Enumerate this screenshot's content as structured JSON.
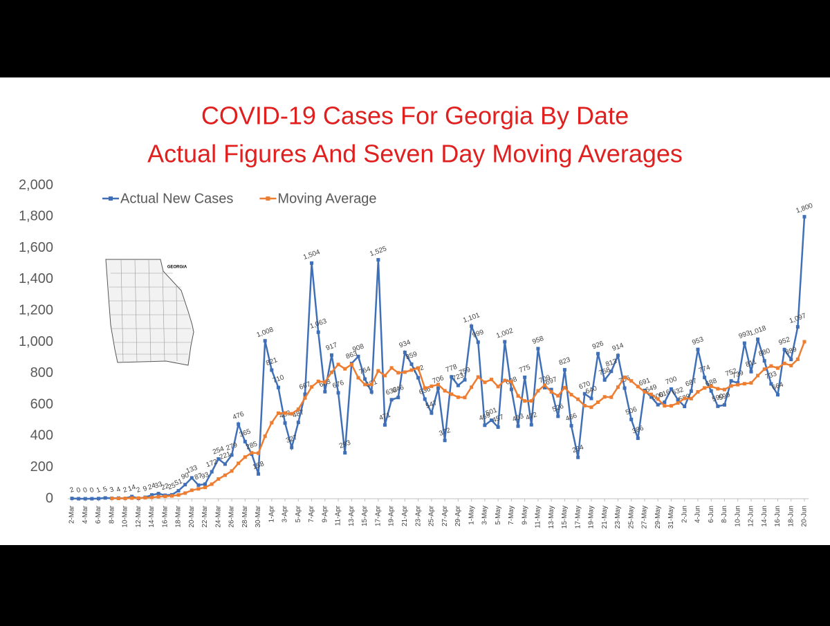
{
  "chart_data": {
    "type": "line",
    "title": [
      "COVID-19 Cases For Georgia By Date",
      "Actual Figures And Seven Day Moving Averages"
    ],
    "map_label": "GEORGIA",
    "categories": [
      "2-Mar",
      null,
      "4-Mar",
      null,
      "6-Mar",
      null,
      "8-Mar",
      null,
      "10-Mar",
      null,
      "12-Mar",
      null,
      "14-Mar",
      null,
      "16-Mar",
      null,
      "18-Mar",
      null,
      "20-Mar",
      null,
      "22-Mar",
      null,
      "24-Mar",
      null,
      "26-Mar",
      null,
      "28-Mar",
      null,
      "30-Mar",
      null,
      "1-Apr",
      null,
      "3-Apr",
      null,
      "5-Apr",
      null,
      "7-Apr",
      null,
      "9-Apr",
      null,
      "11-Apr",
      null,
      "13-Apr",
      null,
      "15-Apr",
      null,
      "17-Apr",
      null,
      "19-Apr",
      null,
      "21-Apr",
      null,
      "23-Apr",
      null,
      "25-Apr",
      null,
      "27-Apr",
      null,
      "29-Apr",
      null,
      "1-May",
      null,
      "3-May",
      null,
      "5-May",
      null,
      "7-May",
      null,
      "9-May",
      null,
      "11-May",
      null,
      "13-May",
      null,
      "15-May",
      null,
      "17-May",
      null,
      "19-May",
      null,
      "21-May",
      null,
      "23-May",
      null,
      "25-May",
      null,
      "27-May",
      null,
      "29-May",
      null,
      "31-May",
      null,
      "2-Jun",
      null,
      "4-Jun",
      null,
      "6-Jun",
      null,
      "8-Jun",
      null,
      "10-Jun",
      null,
      "12-Jun",
      null,
      "14-Jun",
      null,
      "16-Jun",
      null,
      "18-Jun",
      null,
      "20-Jun"
    ],
    "series": [
      {
        "name": "Actual New Cases",
        "color": "#3f6fb6",
        "values": [
          2,
          0,
          0,
          0,
          1,
          5,
          3,
          4,
          2,
          14,
          2,
          9,
          24,
          33,
          22,
          25,
          51,
          90,
          133,
          87,
          93,
          172,
          254,
          221,
          279,
          476,
          365,
          285,
          158,
          1008,
          821,
          710,
          483,
          327,
          487,
          667,
          1504,
          1063,
          683,
          917,
          676,
          293,
          863,
          908,
          764,
          681,
          1525,
          471,
          632,
          646,
          934,
          859,
          772,
          636,
          547,
          706,
          372,
          778,
          723,
          759,
          1101,
          999,
          469,
          501,
          457,
          1002,
          698,
          463,
          775,
          472,
          958,
          709,
          697,
          526,
          823,
          466,
          264,
          670,
          640,
          926,
          758,
          813,
          914,
          706,
          506,
          386,
          691,
          649,
          600,
          616,
          700,
          632,
          589,
          687,
          953,
          774,
          688,
          590,
          599,
          752,
          739,
          993,
          811,
          1018,
          880,
          733,
          664,
          952,
          889,
          1097,
          1800
        ],
        "value_labels": [
          "2",
          "0",
          "0",
          "0",
          "1",
          "5",
          "3",
          "4",
          "2",
          "14",
          "2",
          "9",
          "24",
          "33",
          "22",
          "25",
          "51",
          "90",
          "133",
          "87",
          "93",
          "172",
          "254",
          "221",
          "279",
          "476",
          "365",
          "285",
          "158",
          "1,008",
          "821",
          "710",
          "483",
          "327",
          "487",
          "667",
          "1,504",
          "1,063",
          "683",
          "917",
          "676",
          "293",
          "863",
          "908",
          "764",
          "681",
          "1,525",
          "471",
          "632",
          "646",
          "934",
          "859",
          "772",
          "636",
          "547",
          "706",
          "372",
          "778",
          "723",
          "759",
          "1,101",
          "999",
          "469",
          "501",
          "457",
          "1,002",
          "698",
          "463",
          "775",
          "472",
          "958",
          "709",
          "697",
          "526",
          "823",
          "466",
          "264",
          "670",
          "640",
          "926",
          "758",
          "813",
          "914",
          "706",
          "506",
          "386",
          "691",
          "649",
          "600",
          "616",
          "700",
          "632",
          "589",
          "687",
          "953",
          "774",
          "688",
          "590",
          "599",
          "752",
          "739",
          "993",
          "811",
          "1,018",
          "880",
          "733",
          "664",
          "952",
          "889",
          "1,097",
          "1,800"
        ]
      },
      {
        "name": "Moving Average",
        "color": "#ed7d31",
        "values": [
          null,
          null,
          null,
          null,
          null,
          null,
          2,
          2,
          2,
          4,
          4,
          6,
          8,
          13,
          15,
          18,
          24,
          36,
          54,
          63,
          72,
          93,
          126,
          150,
          177,
          226,
          266,
          293,
          291,
          399,
          485,
          546,
          547,
          542,
          571,
          643,
          714,
          749,
          745,
          807,
          857,
          829,
          857,
          772,
          729,
          729,
          816,
          786,
          835,
          804,
          808,
          821,
          834,
          707,
          718,
          729,
          689,
          667,
          648,
          646,
          712,
          777,
          743,
          761,
          716,
          755,
          747,
          656,
          624,
          624,
          689,
          725,
          682,
          657,
          709,
          664,
          635,
          594,
          584,
          616,
          650,
          648,
          712,
          775,
          752,
          716,
          682,
          666,
          636,
          593,
          593,
          611,
          640,
          639,
          682,
          707,
          718,
          702,
          697,
          720,
          728,
          734,
          739,
          786,
          827,
          847,
          834,
          864,
          850,
          890,
          1002
        ]
      }
    ],
    "ylim": [
      0,
      2000
    ],
    "yticks": [
      0,
      200,
      400,
      600,
      800,
      {
        "value": 1000,
        "label": "1,000"
      },
      {
        "value": 1200,
        "label": "1,200"
      },
      {
        "value": 1400,
        "label": "1,400"
      },
      {
        "value": 1600,
        "label": "1,600"
      },
      {
        "value": 1800,
        "label": "1,800"
      },
      {
        "value": 2000,
        "label": "2,000"
      }
    ],
    "grid": false,
    "legend": "top-left"
  }
}
